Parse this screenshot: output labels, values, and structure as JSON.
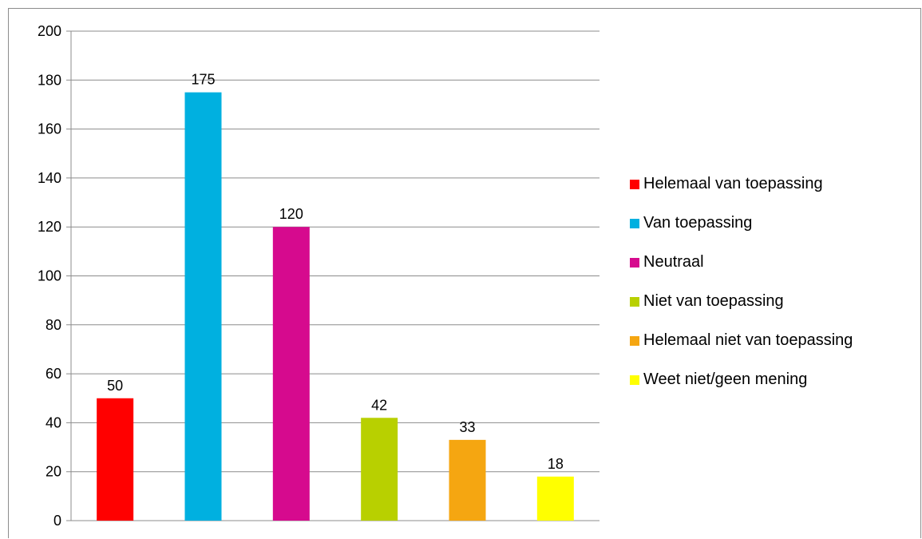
{
  "chart_data": {
    "type": "bar",
    "title": "",
    "xlabel": "",
    "ylabel": "",
    "ylim": [
      0,
      200
    ],
    "yticks": [
      0,
      20,
      40,
      60,
      80,
      100,
      120,
      140,
      160,
      180,
      200
    ],
    "grid": true,
    "legend_position": "right",
    "categories": [
      "Helemaal van toepassing",
      "Van toepassing",
      "Neutraal",
      "Niet van toepassing",
      "Helemaal niet van toepassing",
      "Weet niet/geen mening"
    ],
    "values": [
      50,
      175,
      120,
      42,
      33,
      18
    ],
    "colors": [
      "#ff0000",
      "#00b0e0",
      "#d60a8e",
      "#b8d000",
      "#f5a611",
      "#ffff00"
    ],
    "data_labels": [
      "50",
      "175",
      "120",
      "42",
      "33",
      "18"
    ]
  }
}
